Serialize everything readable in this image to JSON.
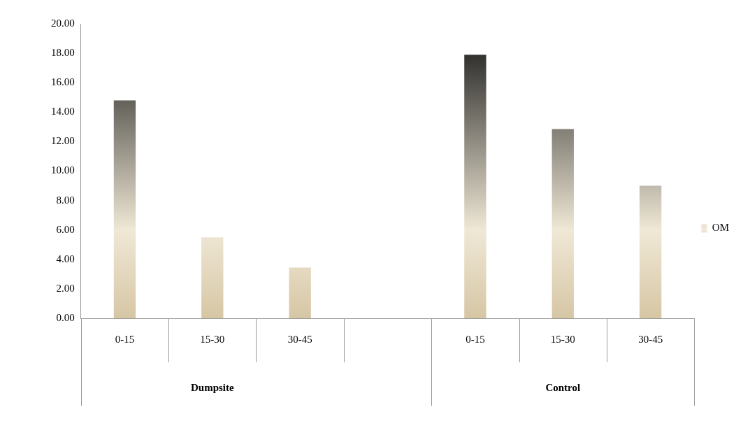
{
  "chart_data": {
    "type": "bar",
    "categories": [
      "0-15",
      "15-30",
      "30-45",
      null,
      "0-15",
      "15-30",
      "30-45"
    ],
    "series": [
      {
        "name": "OM",
        "color": "#111111",
        "values": [
          14.8,
          5.5,
          3.45,
          null,
          17.9,
          12.85,
          9.0
        ]
      }
    ],
    "annotations": [
      "Dumpsite",
      "Control"
    ],
    "ylim": [
      0,
      20
    ],
    "yticks": [
      {
        "value": 0,
        "label": "0.00"
      },
      {
        "value": 2,
        "label": "2.00"
      },
      {
        "value": 4,
        "label": "4.00"
      },
      {
        "value": 6,
        "label": "6.00"
      },
      {
        "value": 8,
        "label": "8.00"
      },
      {
        "value": 10,
        "label": "10.00"
      },
      {
        "value": 12,
        "label": "12.00"
      },
      {
        "value": 14,
        "label": "14.00"
      },
      {
        "value": 16,
        "label": "16.00"
      },
      {
        "value": 18,
        "label": "18.00"
      },
      {
        "value": 20,
        "label": "20.00"
      }
    ],
    "grid": false,
    "legend": "right"
  }
}
